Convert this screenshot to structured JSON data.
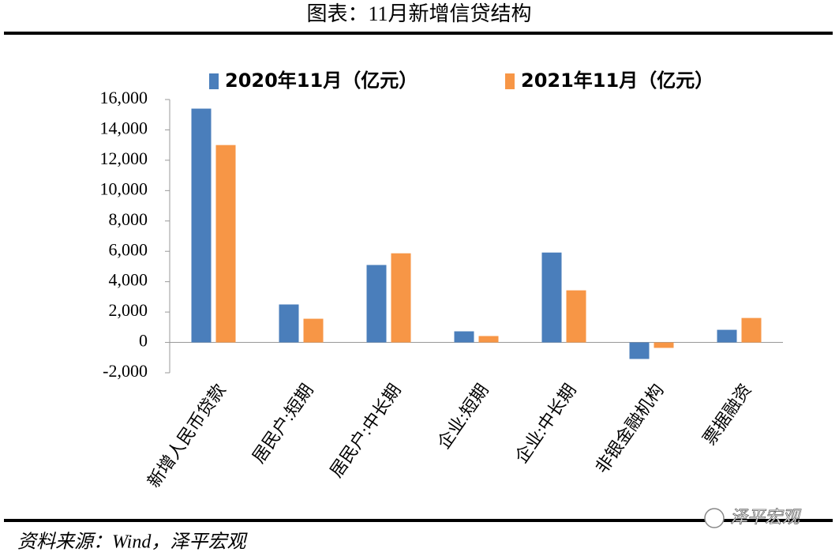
{
  "chart_data": {
    "type": "bar",
    "title": "图表：11月新增信贷结构",
    "categories": [
      "新增人民币贷款",
      "居民户:短期",
      "居民户:中长期",
      "企业:短期",
      "企业:中长期",
      "非银金融机构",
      "票据融资"
    ],
    "series": [
      {
        "name": "2020年11月（亿元）",
        "color": "#4a7ebb",
        "values": [
          15400,
          2500,
          5100,
          730,
          5920,
          -1090,
          830
        ]
      },
      {
        "name": "2021年11月（亿元）",
        "color": "#f79646",
        "values": [
          13000,
          1560,
          5870,
          420,
          3430,
          -360,
          1610
        ]
      }
    ],
    "ylim": [
      -2000,
      16000
    ],
    "yticks": [
      {
        "value": -2000,
        "label": "-2,000"
      },
      0,
      {
        "value": 2000,
        "label": "2,000"
      },
      {
        "value": 4000,
        "label": "4,000"
      },
      {
        "value": 6000,
        "label": "6,000"
      },
      {
        "value": 8000,
        "label": "8,000"
      },
      {
        "value": 10000,
        "label": "10,000"
      },
      {
        "value": 12000,
        "label": "12,000"
      },
      {
        "value": 14000,
        "label": "14,000"
      },
      {
        "value": 16000,
        "label": "16,000"
      }
    ],
    "grid": false,
    "legend": "top"
  },
  "source": "资料来源：Wind，泽平宏观",
  "watermark": "泽平宏观"
}
